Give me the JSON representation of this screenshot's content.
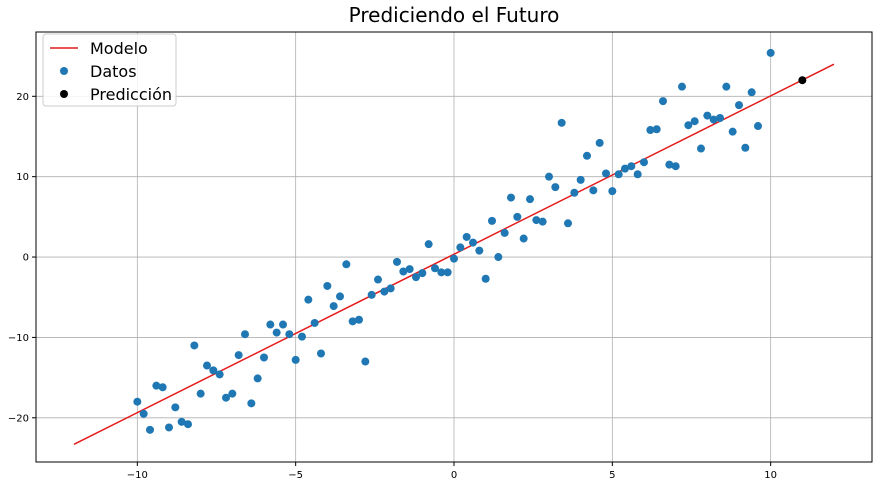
{
  "chart_data": {
    "type": "scatter",
    "title": "Prediciendo el Futuro",
    "xlabel": "",
    "ylabel": "",
    "xlim": [
      -13.2,
      13.2
    ],
    "ylim": [
      -25.5,
      28.0
    ],
    "xticks": [
      -10,
      -5,
      0,
      5,
      10
    ],
    "yticks": [
      -20,
      -10,
      0,
      10,
      20
    ],
    "x_tick_labels": [
      "−10",
      "−5",
      "0",
      "5",
      "10"
    ],
    "y_tick_labels": [
      "−20",
      "−10",
      "0",
      "10",
      "20"
    ],
    "grid": true,
    "legend_position": "top-left",
    "series": [
      {
        "name": "Modelo",
        "kind": "line",
        "color": "#e41a1c",
        "points": [
          [
            -12,
            -23.3
          ],
          [
            12,
            24.0
          ]
        ]
      },
      {
        "name": "Datos",
        "kind": "scatter",
        "color": "#1f77b4",
        "points": [
          [
            -10.0,
            -18.0
          ],
          [
            -9.8,
            -19.5
          ],
          [
            -9.6,
            -21.5
          ],
          [
            -9.4,
            -16.0
          ],
          [
            -9.2,
            -16.2
          ],
          [
            -9.0,
            -21.2
          ],
          [
            -8.8,
            -18.7
          ],
          [
            -8.6,
            -20.5
          ],
          [
            -8.4,
            -20.8
          ],
          [
            -8.2,
            -11.0
          ],
          [
            -8.0,
            -17.0
          ],
          [
            -7.8,
            -13.5
          ],
          [
            -7.6,
            -14.1
          ],
          [
            -7.4,
            -14.6
          ],
          [
            -7.2,
            -17.5
          ],
          [
            -7.0,
            -17.0
          ],
          [
            -6.8,
            -12.2
          ],
          [
            -6.6,
            -9.6
          ],
          [
            -6.4,
            -18.2
          ],
          [
            -6.2,
            -15.1
          ],
          [
            -6.0,
            -12.5
          ],
          [
            -5.8,
            -8.4
          ],
          [
            -5.6,
            -9.4
          ],
          [
            -5.4,
            -8.4
          ],
          [
            -5.2,
            -9.6
          ],
          [
            -5.0,
            -12.8
          ],
          [
            -4.8,
            -9.9
          ],
          [
            -4.6,
            -5.3
          ],
          [
            -4.4,
            -8.2
          ],
          [
            -4.2,
            -12.0
          ],
          [
            -4.0,
            -3.6
          ],
          [
            -3.8,
            -6.1
          ],
          [
            -3.6,
            -4.9
          ],
          [
            -3.4,
            -0.9
          ],
          [
            -3.2,
            -8.0
          ],
          [
            -3.0,
            -7.8
          ],
          [
            -2.8,
            -13.0
          ],
          [
            -2.6,
            -4.7
          ],
          [
            -2.4,
            -2.8
          ],
          [
            -2.2,
            -4.3
          ],
          [
            -2.0,
            -3.9
          ],
          [
            -1.8,
            -0.6
          ],
          [
            -1.6,
            -1.8
          ],
          [
            -1.4,
            -1.5
          ],
          [
            -1.2,
            -2.5
          ],
          [
            -1.0,
            -2.0
          ],
          [
            -0.8,
            1.6
          ],
          [
            -0.6,
            -1.4
          ],
          [
            -0.4,
            -1.9
          ],
          [
            -0.2,
            -1.9
          ],
          [
            0.0,
            -0.2
          ],
          [
            0.2,
            1.2
          ],
          [
            0.4,
            2.5
          ],
          [
            0.6,
            1.8
          ],
          [
            0.8,
            0.8
          ],
          [
            1.0,
            -2.7
          ],
          [
            1.2,
            4.5
          ],
          [
            1.4,
            0.0
          ],
          [
            1.6,
            3.0
          ],
          [
            1.8,
            7.4
          ],
          [
            2.0,
            5.0
          ],
          [
            2.2,
            2.3
          ],
          [
            2.4,
            7.2
          ],
          [
            2.6,
            4.6
          ],
          [
            2.8,
            4.4
          ],
          [
            3.0,
            10.0
          ],
          [
            3.2,
            8.7
          ],
          [
            3.4,
            16.7
          ],
          [
            3.6,
            4.2
          ],
          [
            3.8,
            8.0
          ],
          [
            4.0,
            9.6
          ],
          [
            4.2,
            12.6
          ],
          [
            4.4,
            8.3
          ],
          [
            4.6,
            14.2
          ],
          [
            4.8,
            10.4
          ],
          [
            5.0,
            8.2
          ],
          [
            5.2,
            10.3
          ],
          [
            5.4,
            11.0
          ],
          [
            5.6,
            11.3
          ],
          [
            5.8,
            10.3
          ],
          [
            6.0,
            11.8
          ],
          [
            6.2,
            15.8
          ],
          [
            6.4,
            15.9
          ],
          [
            6.6,
            19.4
          ],
          [
            6.8,
            11.5
          ],
          [
            7.0,
            11.3
          ],
          [
            7.2,
            21.2
          ],
          [
            7.4,
            16.4
          ],
          [
            7.6,
            16.9
          ],
          [
            7.8,
            13.5
          ],
          [
            8.0,
            17.6
          ],
          [
            8.2,
            17.1
          ],
          [
            8.4,
            17.3
          ],
          [
            8.6,
            21.2
          ],
          [
            8.8,
            15.6
          ],
          [
            9.0,
            18.9
          ],
          [
            9.2,
            13.6
          ],
          [
            9.4,
            20.5
          ],
          [
            9.6,
            16.3
          ],
          [
            10.0,
            25.4
          ]
        ]
      },
      {
        "name": "Predicción",
        "kind": "scatter",
        "color": "#000000",
        "points": [
          [
            11.0,
            22.0
          ]
        ]
      }
    ]
  }
}
